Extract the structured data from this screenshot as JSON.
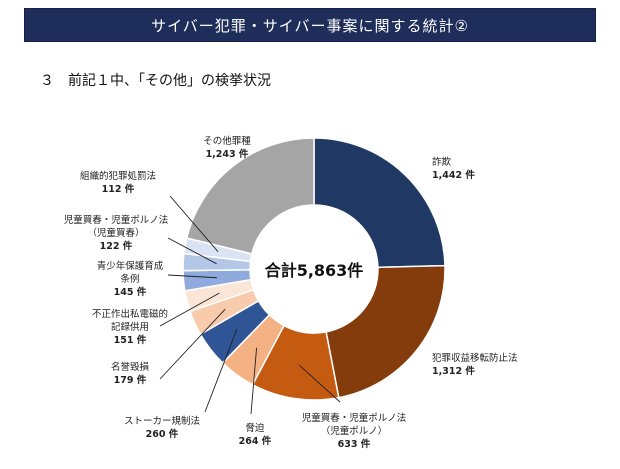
{
  "header": {
    "title": "サイバー犯罪・サイバー事案に関する統計②"
  },
  "section": {
    "heading": "３　前記１中、「その他」の検挙状況"
  },
  "chart_data": {
    "type": "pie",
    "center_label": "合計5,863件",
    "unit": "件",
    "slices": [
      {
        "label_lines": [
          "詐欺"
        ],
        "value_label": "1,442 件",
        "value": 1442,
        "color": "#1f3864"
      },
      {
        "label_lines": [
          "犯罪収益移転防止法"
        ],
        "value_label": "1,312 件",
        "value": 1312,
        "color": "#843c0c"
      },
      {
        "label_lines": [
          "児童買春・児童ポルノ法",
          "（児童ポルノ）"
        ],
        "value_label": "633 件",
        "value": 633,
        "color": "#c55a11"
      },
      {
        "label_lines": [
          "脅迫"
        ],
        "value_label": "264 件",
        "value": 264,
        "color": "#f4b183"
      },
      {
        "label_lines": [
          "ストーカー規制法"
        ],
        "value_label": "260 件",
        "value": 260,
        "color": "#2f5597"
      },
      {
        "label_lines": [
          "名誉毀損"
        ],
        "value_label": "179 件",
        "value": 179,
        "color": "#f8cbad"
      },
      {
        "label_lines": [
          "不正作出私電磁的",
          "記録供用"
        ],
        "value_label": "151 件",
        "value": 151,
        "color": "#fbe5d6"
      },
      {
        "label_lines": [
          "青少年保護育成",
          "条例"
        ],
        "value_label": "145 件",
        "value": 145,
        "color": "#8faadc"
      },
      {
        "label_lines": [
          "児童買春・児童ポルノ法",
          "（児童買春）"
        ],
        "value_label": "122 件",
        "value": 122,
        "color": "#b4c7e7"
      },
      {
        "label_lines": [
          "組織的犯罪処罰法"
        ],
        "value_label": "112 件",
        "value": 112,
        "color": "#dae3f3"
      },
      {
        "label_lines": [
          "その他罪種"
        ],
        "value_label": "1,243 件",
        "value": 1243,
        "color": "#a5a5a5"
      }
    ]
  }
}
